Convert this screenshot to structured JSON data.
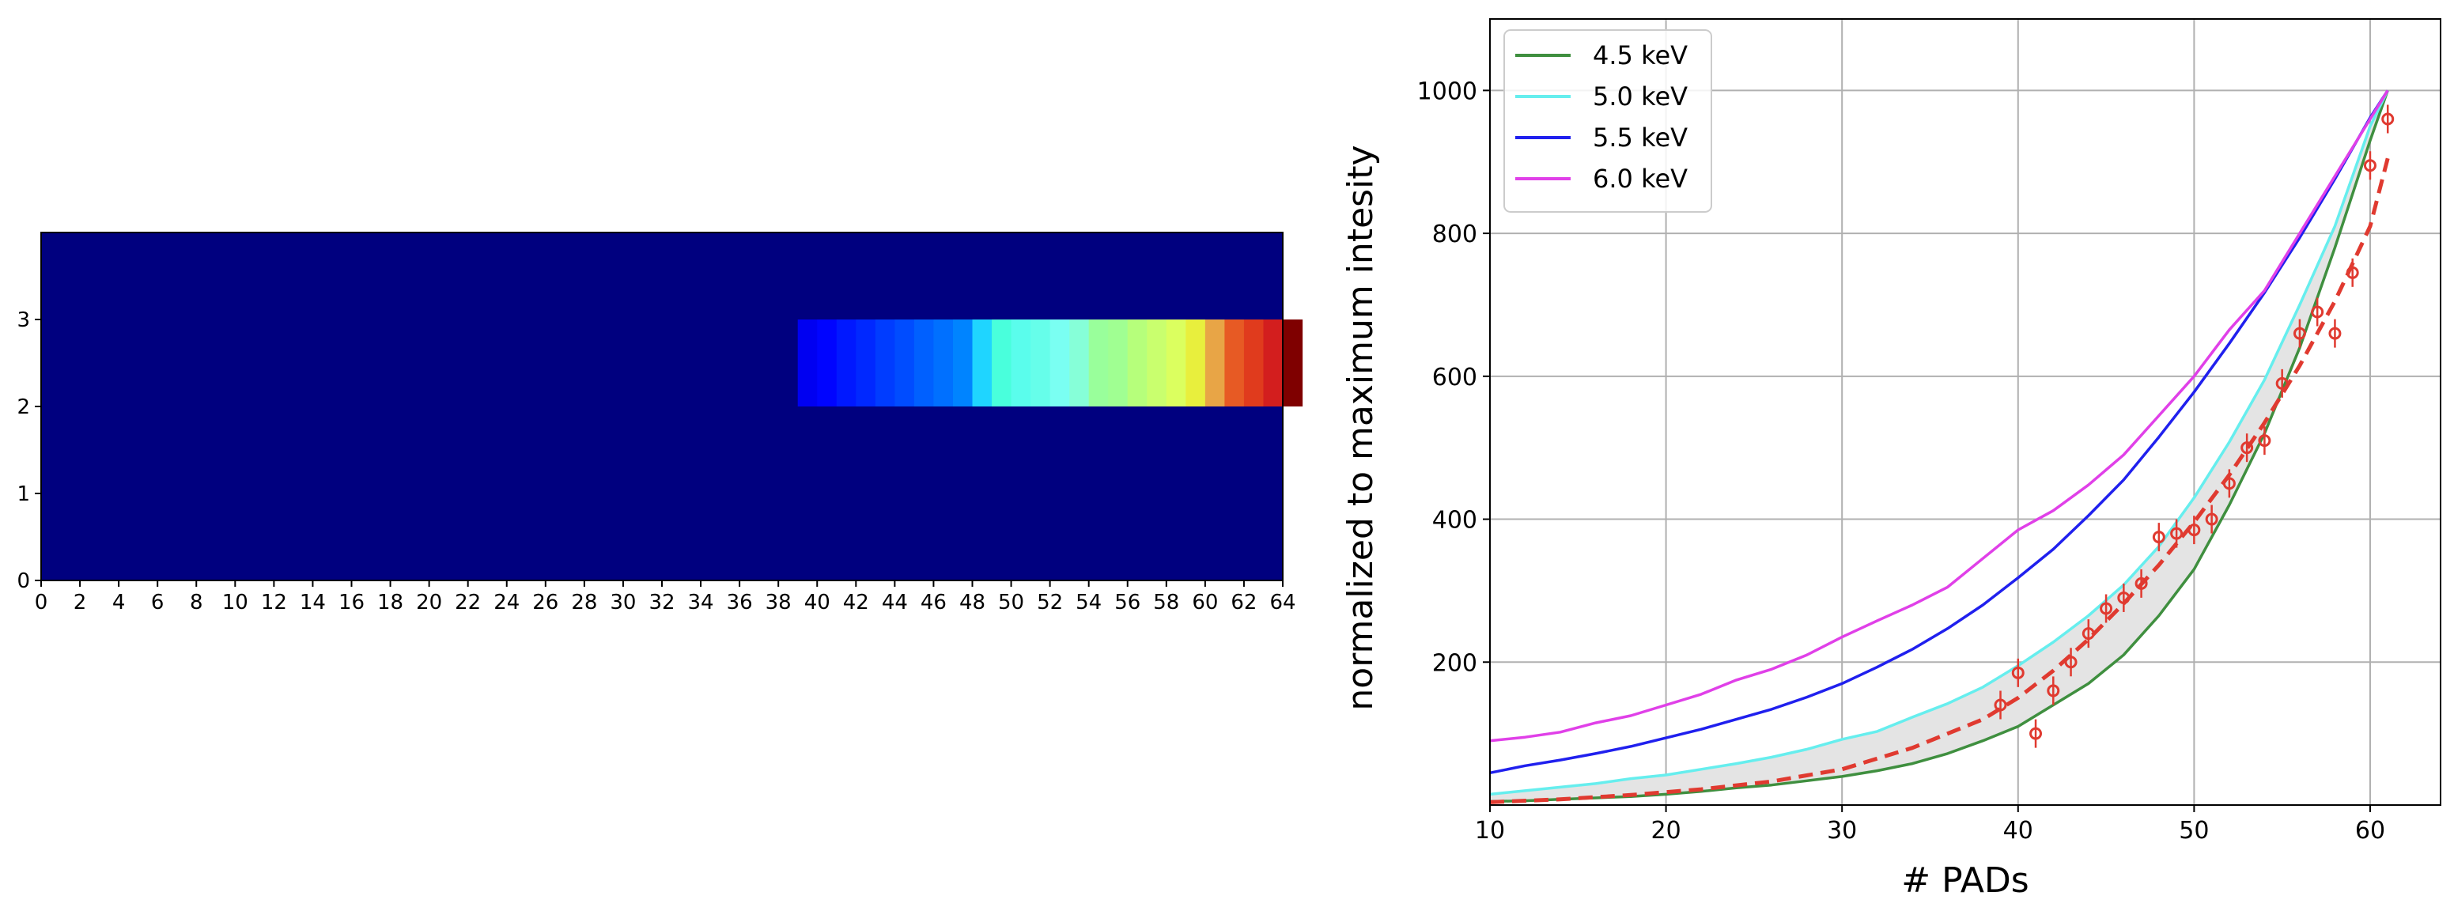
{
  "chart_data": [
    {
      "type": "heatmap",
      "xlabel": "",
      "ylabel": "",
      "x_ticks": [
        "0",
        "2",
        "4",
        "6",
        "8",
        "10",
        "12",
        "14",
        "16",
        "18",
        "20",
        "22",
        "24",
        "26",
        "28",
        "30",
        "32",
        "34",
        "36",
        "38",
        "40",
        "42",
        "44",
        "46",
        "48",
        "50",
        "52",
        "54",
        "56",
        "58",
        "60",
        "62",
        "64"
      ],
      "y_ticks": [
        "0",
        "1",
        "2",
        "3"
      ],
      "xlim": [
        0,
        64
      ],
      "ylim": [
        0,
        4
      ],
      "colormap": "jet",
      "background_color": "#00007f",
      "highlight_row": 2,
      "highlight_start_col": 39,
      "row_colors": [
        "#0000f1",
        "#0004ff",
        "#0018ff",
        "#0028ff",
        "#003cff",
        "#004cff",
        "#0060ff",
        "#0070ff",
        "#0084ff",
        "#1fd5ff",
        "#49ffdc",
        "#5afdec",
        "#66feea",
        "#7afff2",
        "#86ffd8",
        "#99ff9b",
        "#a0ff92",
        "#b6ff7b",
        "#c9ff6e",
        "#dbff5f",
        "#e8ef3d",
        "#e8a546",
        "#e75a24",
        "#e03b1d",
        "#d31e1e",
        "#7f0000"
      ]
    },
    {
      "type": "line",
      "xlabel": "# PADs",
      "ylabel": "normalized to maximum intesity",
      "xlim": [
        10,
        64
      ],
      "ylim": [
        0,
        1100
      ],
      "x_ticks": [
        "10",
        "20",
        "30",
        "40",
        "50",
        "60"
      ],
      "y_ticks": [
        "200",
        "400",
        "600",
        "800",
        "1000"
      ],
      "grid": true,
      "legend_position": "top-left",
      "series": [
        {
          "name": "4.5 keV",
          "color": "#3f8f3f",
          "x": [
            10,
            12,
            14,
            16,
            18,
            20,
            22,
            24,
            26,
            28,
            30,
            32,
            34,
            36,
            38,
            40,
            42,
            44,
            46,
            48,
            50,
            52,
            54,
            56,
            58,
            60,
            61
          ],
          "y": [
            5,
            6,
            8,
            10,
            12,
            15,
            19,
            24,
            28,
            34,
            40,
            48,
            58,
            72,
            90,
            110,
            140,
            170,
            210,
            265,
            330,
            420,
            520,
            640,
            780,
            930,
            1000
          ]
        },
        {
          "name": "5.0 keV",
          "color": "#66eeee",
          "x": [
            10,
            12,
            14,
            16,
            18,
            20,
            22,
            24,
            26,
            28,
            30,
            32,
            34,
            36,
            38,
            40,
            42,
            44,
            46,
            48,
            50,
            52,
            54,
            56,
            58,
            60,
            61
          ],
          "y": [
            15,
            20,
            25,
            30,
            37,
            42,
            50,
            58,
            67,
            78,
            92,
            103,
            123,
            142,
            165,
            195,
            228,
            265,
            308,
            362,
            430,
            508,
            595,
            700,
            810,
            950,
            1000
          ]
        },
        {
          "name": "5.5 keV",
          "color": "#2020ee",
          "x": [
            10,
            12,
            14,
            16,
            18,
            20,
            22,
            24,
            26,
            28,
            30,
            32,
            34,
            36,
            38,
            40,
            42,
            44,
            46,
            48,
            50,
            52,
            54,
            56,
            58,
            60,
            61
          ],
          "y": [
            45,
            55,
            63,
            72,
            82,
            94,
            106,
            120,
            134,
            151,
            170,
            193,
            218,
            247,
            280,
            318,
            358,
            405,
            455,
            515,
            578,
            646,
            717,
            794,
            876,
            962,
            1000
          ]
        },
        {
          "name": "6.0 keV",
          "color": "#e040e8",
          "x": [
            10,
            12,
            14,
            16,
            18,
            20,
            22,
            24,
            26,
            28,
            30,
            32,
            34,
            36,
            38,
            40,
            42,
            44,
            46,
            48,
            50,
            52,
            54,
            56,
            58,
            60,
            61
          ],
          "y": [
            90,
            95,
            102,
            115,
            125,
            140,
            155,
            175,
            190,
            210,
            235,
            258,
            280,
            305,
            345,
            385,
            412,
            448,
            490,
            545,
            600,
            665,
            720,
            800,
            880,
            960,
            1000
          ]
        }
      ],
      "fit_curve": {
        "color": "#e03a30",
        "style": "dashed",
        "x": [
          10,
          14,
          18,
          22,
          26,
          30,
          34,
          38,
          40,
          42,
          44,
          46,
          48,
          50,
          52,
          54,
          56,
          58,
          60,
          61
        ],
        "y": [
          4,
          8,
          14,
          22,
          33,
          50,
          80,
          120,
          150,
          188,
          232,
          282,
          336,
          396,
          462,
          535,
          615,
          705,
          810,
          905
        ]
      },
      "measured_points": {
        "color": "#e03a30",
        "x": [
          39,
          40,
          41,
          42,
          43,
          44,
          45,
          46,
          47,
          48,
          49,
          50,
          51,
          52,
          53,
          54,
          55,
          56,
          57,
          58,
          59,
          60,
          61
        ],
        "y": [
          140,
          185,
          100,
          160,
          200,
          240,
          275,
          290,
          310,
          375,
          380,
          385,
          400,
          450,
          500,
          510,
          590,
          660,
          690,
          660,
          745,
          895,
          960
        ]
      }
    }
  ]
}
